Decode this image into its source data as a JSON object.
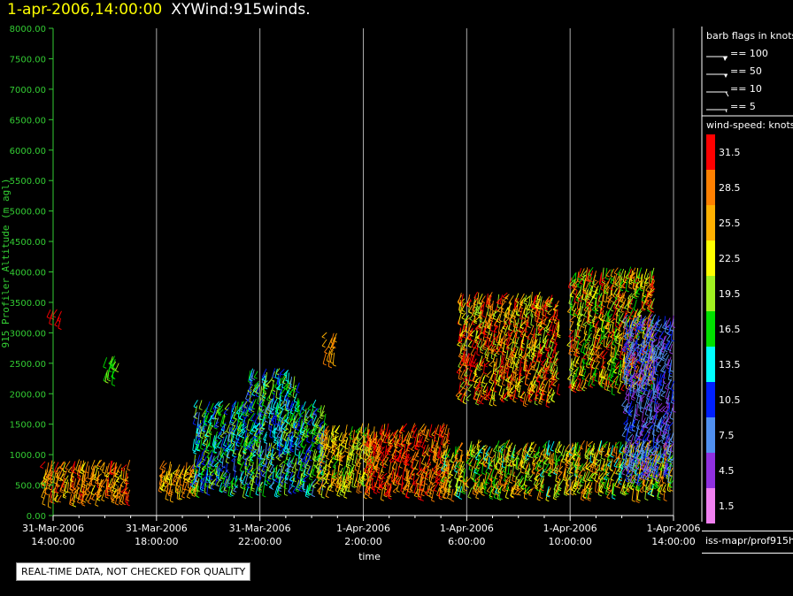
{
  "header": {
    "datetime": "1-apr-2006,14:00:00",
    "product": "XYWind:915winds."
  },
  "quality_note": "REAL-TIME DATA, NOT CHECKED FOR QUALITY",
  "footer_id": "iss-mapr/prof915h",
  "colors": {
    "yaxis": "#33cc33",
    "grid": "#aaaaaa",
    "header_datetime": "#ffff00"
  },
  "chart_data": {
    "type": "scatter",
    "title": "XYWind:915winds.",
    "xlabel": "time",
    "ylabel": "915 Profiler Altitude (m agl)",
    "ylim": [
      0,
      8000
    ],
    "yticks": [
      "0.00",
      "500.00",
      "1000.00",
      "1500.00",
      "2000.00",
      "2500.00",
      "3000.00",
      "3500.00",
      "4000.00",
      "4500.00",
      "5000.00",
      "5500.00",
      "6000.00",
      "6500.00",
      "7000.00",
      "7500.00",
      "8000.00"
    ],
    "xticks": [
      {
        "hour": 0,
        "date": "31-Mar-2006",
        "time": "14:00:00"
      },
      {
        "hour": 4,
        "date": "31-Mar-2006",
        "time": "18:00:00"
      },
      {
        "hour": 8,
        "date": "31-Mar-2006",
        "time": "22:00:00"
      },
      {
        "hour": 12,
        "date": "1-Apr-2006",
        "time": "2:00:00"
      },
      {
        "hour": 16,
        "date": "1-Apr-2006",
        "time": "6:00:00"
      },
      {
        "hour": 20,
        "date": "1-Apr-2006",
        "time": "10:00:00"
      },
      {
        "hour": 24,
        "date": "1-Apr-2006",
        "time": "14:00:00"
      }
    ],
    "xlim_hours_since_start": [
      0,
      24
    ],
    "grid": "vertical",
    "barb_legend": {
      "title": "barb flags in knots",
      "entries": [
        {
          "label": "== 100",
          "knots": 100
        },
        {
          "label": "== 50",
          "knots": 50
        },
        {
          "label": "== 10",
          "knots": 10
        },
        {
          "label": "== 5",
          "knots": 5
        }
      ]
    },
    "color_scale": {
      "title": "wind-speed: knots",
      "bins": [
        {
          "label": "31.5",
          "color": "#ff0000"
        },
        {
          "label": "28.5",
          "color": "#ff8000"
        },
        {
          "label": "25.5",
          "color": "#ffb000"
        },
        {
          "label": "22.5",
          "color": "#ffff00"
        },
        {
          "label": "19.5",
          "color": "#a0f020"
        },
        {
          "label": "16.5",
          "color": "#00e000"
        },
        {
          "label": "13.5",
          "color": "#00ffff"
        },
        {
          "label": "10.5",
          "color": "#0020ff"
        },
        {
          "label": "7.5",
          "color": "#5090f0"
        },
        {
          "label": "4.5",
          "color": "#9030e0"
        },
        {
          "label": "1.5",
          "color": "#f080f0"
        }
      ]
    },
    "wind_clusters": [
      {
        "hour_start": -0.3,
        "hour_end": 3.0,
        "alt_low": 350,
        "alt_high": 950,
        "speed": 27,
        "spread": 4
      },
      {
        "hour_start": -0.1,
        "hour_end": 0.4,
        "alt_low": 3250,
        "alt_high": 3400,
        "speed": 31,
        "spread": 1
      },
      {
        "hour_start": 2.1,
        "hour_end": 2.6,
        "alt_low": 2350,
        "alt_high": 2650,
        "speed": 18,
        "spread": 1
      },
      {
        "hour_start": 4.2,
        "hour_end": 5.6,
        "alt_low": 450,
        "alt_high": 900,
        "speed": 26,
        "spread": 4
      },
      {
        "hour_start": 5.5,
        "hour_end": 10.6,
        "alt_low": 500,
        "alt_high": 1900,
        "speed": 14,
        "spread": 7
      },
      {
        "hour_start": 7.6,
        "hour_end": 9.6,
        "alt_low": 1900,
        "alt_high": 2400,
        "speed": 14,
        "spread": 7
      },
      {
        "hour_start": 10.3,
        "hour_end": 12.4,
        "alt_low": 500,
        "alt_high": 1500,
        "speed": 23,
        "spread": 6
      },
      {
        "hour_start": 10.6,
        "hour_end": 11.0,
        "alt_low": 2650,
        "alt_high": 3000,
        "speed": 27,
        "spread": 2
      },
      {
        "hour_start": 12.2,
        "hour_end": 15.4,
        "alt_low": 450,
        "alt_high": 1500,
        "speed": 29,
        "spread": 4
      },
      {
        "hour_start": 15.2,
        "hour_end": 24.0,
        "alt_low": 450,
        "alt_high": 1250,
        "speed": 22,
        "spread": 8
      },
      {
        "hour_start": 15.8,
        "hour_end": 19.6,
        "alt_low": 2000,
        "alt_high": 3700,
        "speed": 26,
        "spread": 8
      },
      {
        "hour_start": 20.1,
        "hour_end": 23.3,
        "alt_low": 2200,
        "alt_high": 4100,
        "speed": 24,
        "spread": 9
      },
      {
        "hour_start": 22.2,
        "hour_end": 24.0,
        "alt_low": 700,
        "alt_high": 3300,
        "speed": 7,
        "spread": 3
      }
    ]
  }
}
